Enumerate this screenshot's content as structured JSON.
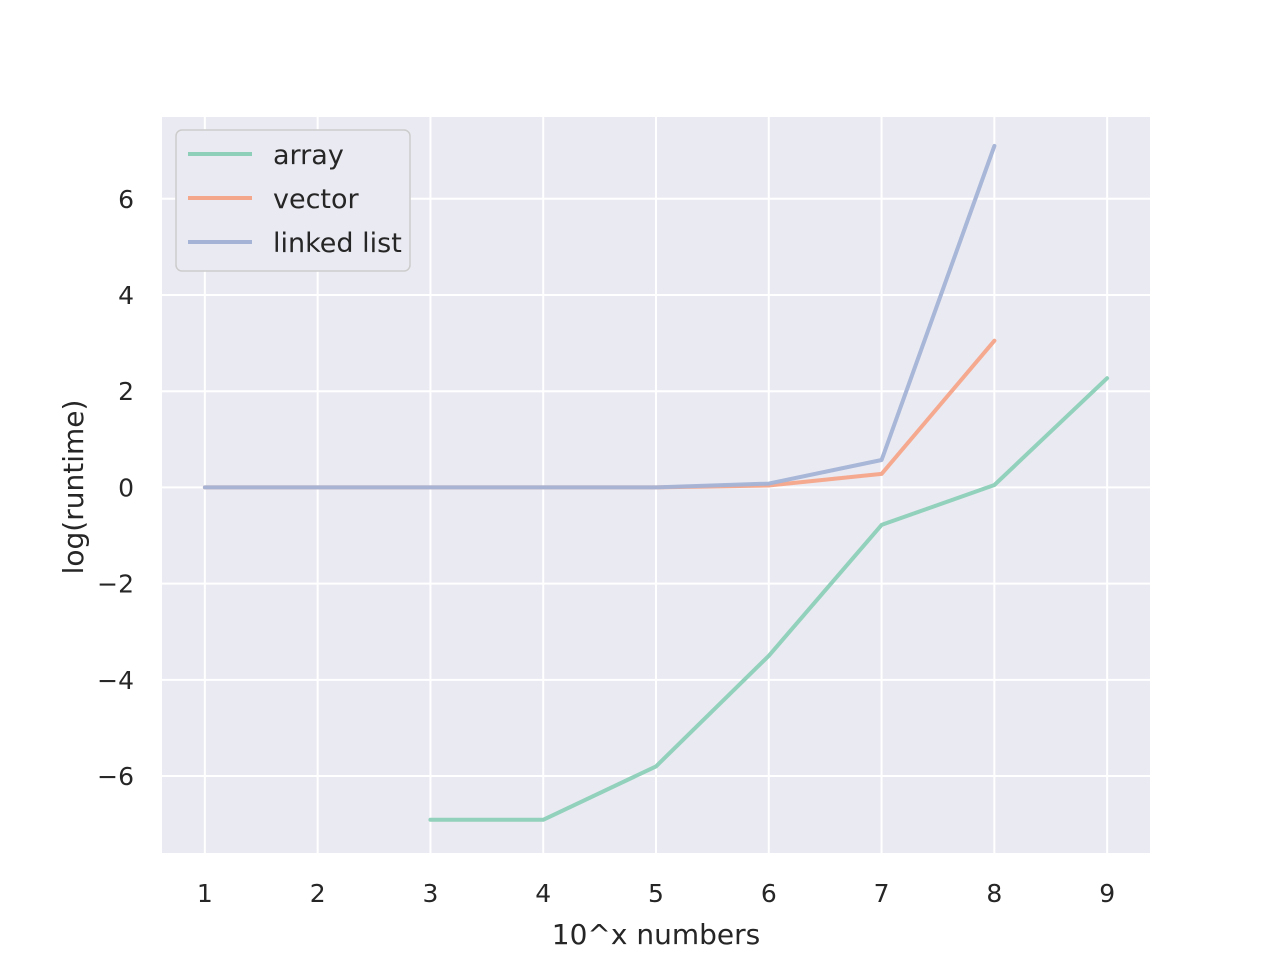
{
  "chart_data": {
    "type": "line",
    "title": "",
    "xlabel": "10^x numbers",
    "ylabel": "log(runtime)",
    "xlim": [
      0.62,
      9.38
    ],
    "ylim": [
      -7.6,
      7.7
    ],
    "xticks": [
      1,
      2,
      3,
      4,
      5,
      6,
      7,
      8,
      9
    ],
    "xtick_labels": [
      "1",
      "2",
      "3",
      "4",
      "5",
      "6",
      "7",
      "8",
      "9"
    ],
    "yticks": [
      -6,
      -4,
      -2,
      0,
      2,
      4,
      6
    ],
    "ytick_labels": [
      "−6",
      "−4",
      "−2",
      "0",
      "2",
      "4",
      "6"
    ],
    "grid": true,
    "legend_position": "top-left",
    "series": [
      {
        "name": "array",
        "color": "#8ecfb9",
        "x": [
          1,
          2,
          3,
          4,
          5,
          6,
          7,
          8,
          9
        ],
        "y": [
          null,
          null,
          -6.91,
          -6.91,
          -5.8,
          -3.5,
          -0.78,
          0.05,
          2.27
        ]
      },
      {
        "name": "vector",
        "color": "#f5a78c",
        "x": [
          1,
          2,
          3,
          4,
          5,
          6,
          7,
          8
        ],
        "y": [
          0,
          0,
          0,
          0,
          0,
          0.04,
          0.28,
          3.05
        ]
      },
      {
        "name": "linked list",
        "color": "#a5b4d6",
        "x": [
          1,
          2,
          3,
          4,
          5,
          6,
          7,
          8
        ],
        "y": [
          0,
          0,
          0,
          0,
          0,
          0.08,
          0.57,
          7.1
        ]
      }
    ]
  }
}
